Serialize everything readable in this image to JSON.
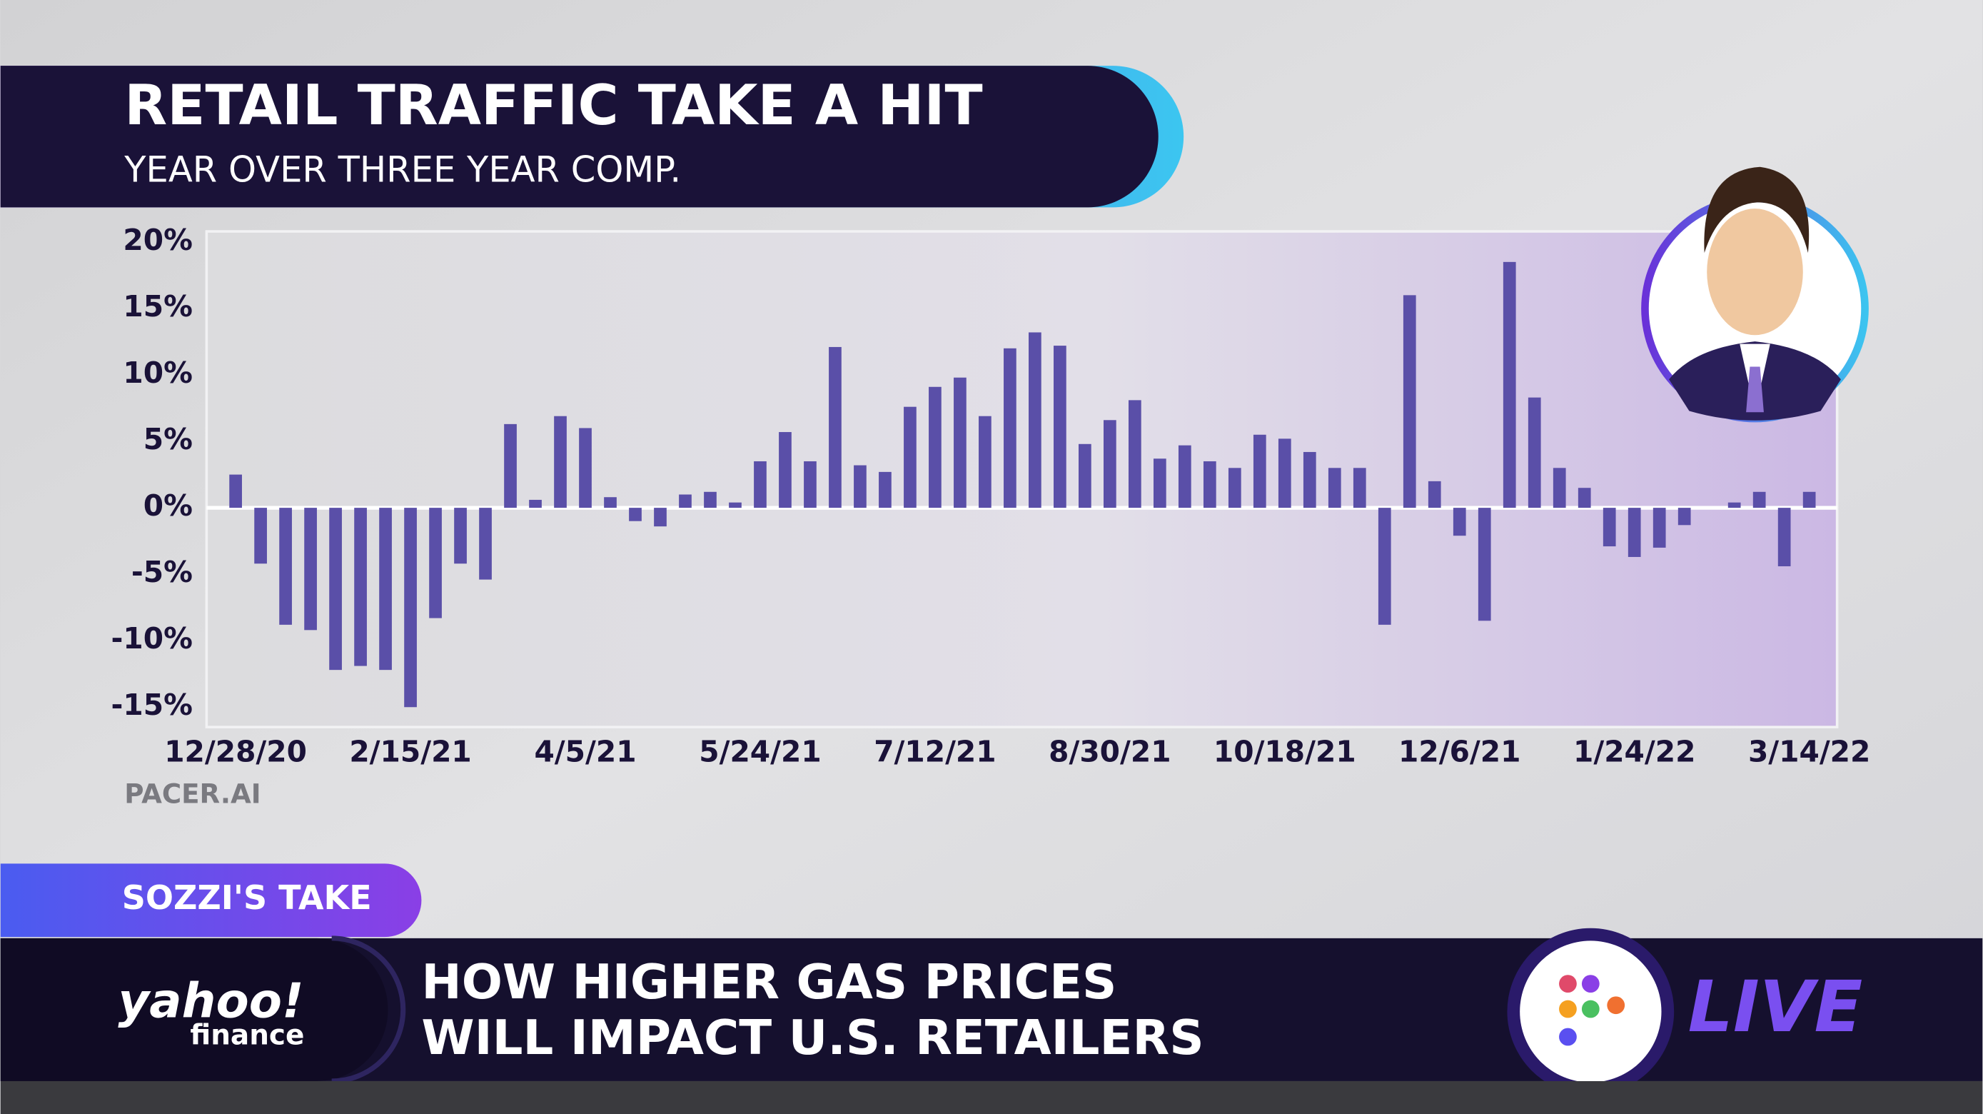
{
  "chart_data": {
    "type": "bar",
    "title": "RETAIL TRAFFIC TAKE A HIT",
    "subtitle": "YEAR OVER THREE YEAR COMP.",
    "source": "PACER.AI",
    "color": "#5a4fa8",
    "categories": [
      "12/28/20",
      null,
      null,
      null,
      null,
      null,
      null,
      "2/15/21",
      null,
      null,
      null,
      null,
      null,
      null,
      "4/5/21",
      null,
      null,
      null,
      null,
      null,
      null,
      "5/24/21",
      null,
      null,
      null,
      null,
      null,
      null,
      "7/12/21",
      null,
      null,
      null,
      null,
      null,
      null,
      "8/30/21",
      null,
      null,
      null,
      null,
      null,
      null,
      "10/18/21",
      null,
      null,
      null,
      null,
      null,
      null,
      "12/6/21",
      null,
      null,
      null,
      null,
      null,
      null,
      "1/24/22",
      null,
      null,
      null,
      null,
      null,
      null,
      "3/14/22"
    ],
    "values": [
      2.5,
      -4.2,
      -8.8,
      -9.2,
      -12.2,
      -11.9,
      -12.2,
      -15,
      -8.3,
      -4.2,
      -5.4,
      6.3,
      0.6,
      6.9,
      6.0,
      0.8,
      -1.0,
      -1.4,
      1.0,
      1.2,
      0.4,
      3.5,
      5.7,
      3.5,
      12.1,
      3.2,
      2.7,
      7.6,
      9.1,
      9.8,
      6.9,
      12.0,
      13.2,
      12.2,
      4.8,
      6.6,
      8.1,
      3.7,
      4.7,
      3.5,
      3.0,
      5.5,
      5.2,
      4.2,
      3.0,
      3.0,
      -8.8,
      16.0,
      2.0,
      -2.1,
      -8.5,
      18.5,
      8.3,
      3.0,
      1.5,
      -2.9,
      -3.7,
      -3.0,
      -1.3,
      0,
      0.4,
      1.2,
      -4.4,
      1.2
    ],
    "ylim": [
      -16.5,
      20.8
    ],
    "yticks": [
      {
        "value": 20,
        "label": "20%"
      },
      {
        "value": 15,
        "label": "15%"
      },
      {
        "value": 10,
        "label": "10%"
      },
      {
        "value": 5,
        "label": "5%"
      },
      {
        "value": 0,
        "label": "0%"
      },
      {
        "value": -5,
        "label": "-5%"
      },
      {
        "value": -10,
        "label": "-10%"
      },
      {
        "value": -15,
        "label": "-15%"
      }
    ],
    "grid": false
  },
  "banner": {
    "tag": "SOZZI'S TAKE",
    "headline": [
      "HOW HIGHER GAS PRICES",
      "WILL IMPACT U.S. RETAILERS"
    ],
    "live": "LIVE"
  },
  "logo": {
    "brand": "yahoo!",
    "product": "finance"
  }
}
